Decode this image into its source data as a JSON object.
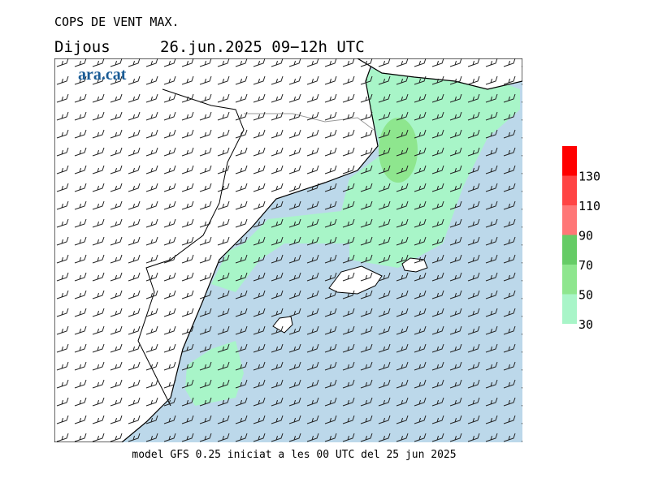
{
  "header": {
    "title": "COPS DE VENT MAX.",
    "day": "Dijous",
    "period": "26.jun.2025 09−12h UTC"
  },
  "logo": "ara.cat",
  "footer": "model GFS 0.25 iniciat a les 00 UTC del 25 jun 2025",
  "legend": {
    "levels": [
      30,
      50,
      70,
      90,
      110,
      130
    ],
    "colors": [
      "#a8f5c8",
      "#8ee68e",
      "#66cc66",
      "#ff7777",
      "#ff4444",
      "#ff0000"
    ]
  }
}
